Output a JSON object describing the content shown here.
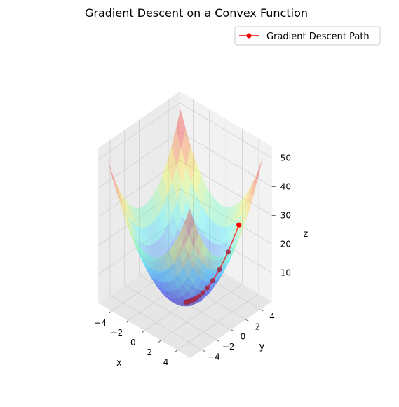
{
  "chart_data": {
    "type": "surface3d",
    "title": "Gradient Descent on a Convex Function",
    "xlabel": "x",
    "ylabel": "y",
    "zlabel": "z",
    "xlim": [
      -5,
      5
    ],
    "ylim": [
      -5,
      5
    ],
    "zlim": [
      0,
      50
    ],
    "x_ticks": [
      -4,
      -2,
      0,
      2,
      4
    ],
    "y_ticks": [
      -4,
      -2,
      0,
      2,
      4
    ],
    "z_ticks": [
      10,
      20,
      30,
      40,
      50
    ],
    "grid": true,
    "legend_position": "top-right",
    "surface": {
      "function": "x^2 + y^2",
      "colormap": "jet",
      "alpha": 0.3
    },
    "series": [
      {
        "name": "Gradient Descent Path",
        "type": "line-with-markers",
        "color": "#ff0000",
        "points": [
          {
            "x": 3.0,
            "y": 4.0,
            "z": 25.0
          },
          {
            "x": 2.4,
            "y": 3.2,
            "z": 16.0
          },
          {
            "x": 1.92,
            "y": 2.56,
            "z": 10.24
          },
          {
            "x": 1.536,
            "y": 2.048,
            "z": 6.55
          },
          {
            "x": 1.229,
            "y": 1.638,
            "z": 4.19
          },
          {
            "x": 0.983,
            "y": 1.311,
            "z": 2.68
          },
          {
            "x": 0.786,
            "y": 1.049,
            "z": 1.72
          },
          {
            "x": 0.629,
            "y": 0.839,
            "z": 1.1
          },
          {
            "x": 0.503,
            "y": 0.671,
            "z": 0.7
          },
          {
            "x": 0.403,
            "y": 0.537,
            "z": 0.45
          },
          {
            "x": 0.322,
            "y": 0.429,
            "z": 0.29
          },
          {
            "x": 0.258,
            "y": 0.344,
            "z": 0.18
          },
          {
            "x": 0.206,
            "y": 0.275,
            "z": 0.12
          },
          {
            "x": 0.165,
            "y": 0.22,
            "z": 0.08
          },
          {
            "x": 0.132,
            "y": 0.176,
            "z": 0.05
          },
          {
            "x": 0.106,
            "y": 0.141,
            "z": 0.03
          },
          {
            "x": 0.084,
            "y": 0.113,
            "z": 0.02
          },
          {
            "x": 0.068,
            "y": 0.09,
            "z": 0.01
          },
          {
            "x": 0.054,
            "y": 0.072,
            "z": 0.01
          },
          {
            "x": 0.043,
            "y": 0.058,
            "z": 0.01
          }
        ]
      }
    ]
  },
  "legend": {
    "label": "Gradient Descent Path"
  },
  "colors": {
    "path": "#ff0000",
    "pane_back": "#f2f2f2",
    "pane_side": "#ebebeb",
    "pane_floor": "#e6e6e6",
    "grid": "#cfcfcf"
  }
}
